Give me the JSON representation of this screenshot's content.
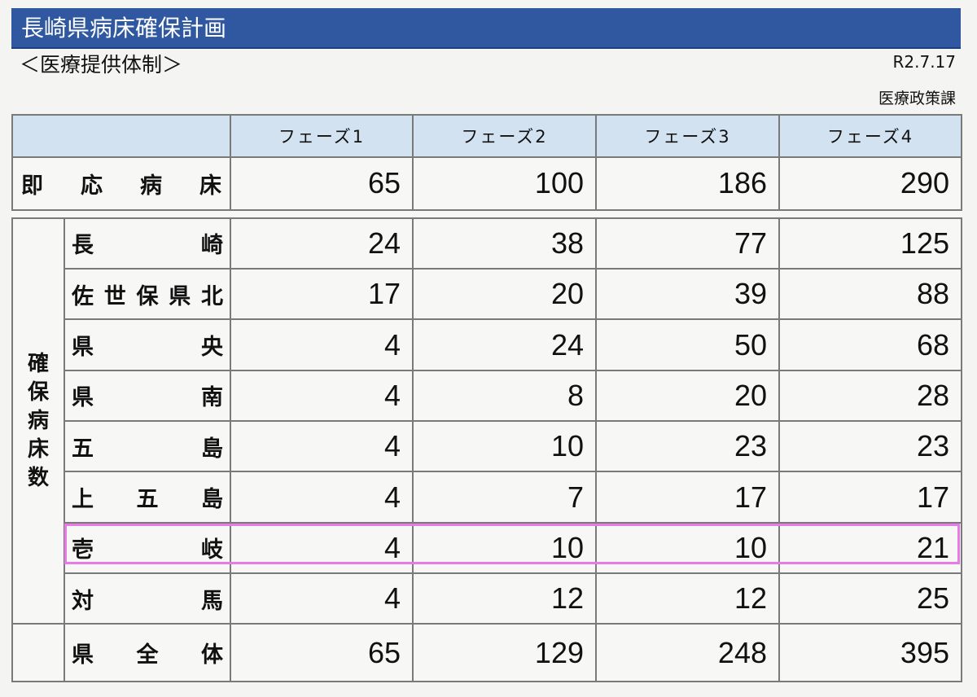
{
  "title": "長崎県病床確保計画",
  "subtitle": "＜医療提供体制＞",
  "date": "R2.7.17",
  "department": "医療政策課",
  "table": {
    "phases": [
      "フェーズ1",
      "フェーズ2",
      "フェーズ3",
      "フェーズ4"
    ],
    "immediate": {
      "label": [
        "即",
        "応",
        "病",
        "床"
      ],
      "values": [
        "65",
        "100",
        "186",
        "290"
      ]
    },
    "secured_label": [
      "確",
      "保",
      "病",
      "床",
      "数"
    ],
    "regions": [
      {
        "label": [
          "長",
          "崎"
        ],
        "values": [
          "24",
          "38",
          "77",
          "125"
        ]
      },
      {
        "label": [
          "佐",
          "世",
          "保",
          "県",
          "北"
        ],
        "values": [
          "17",
          "20",
          "39",
          "88"
        ]
      },
      {
        "label": [
          "県",
          "央"
        ],
        "values": [
          "4",
          "24",
          "50",
          "68"
        ]
      },
      {
        "label": [
          "県",
          "南"
        ],
        "values": [
          "4",
          "8",
          "20",
          "28"
        ]
      },
      {
        "label": [
          "五",
          "島"
        ],
        "values": [
          "4",
          "10",
          "23",
          "23"
        ]
      },
      {
        "label": [
          "上",
          "五",
          "島"
        ],
        "values": [
          "4",
          "7",
          "17",
          "17"
        ]
      },
      {
        "label": [
          "壱",
          "岐"
        ],
        "values": [
          "4",
          "10",
          "10",
          "21"
        ]
      },
      {
        "label": [
          "対",
          "馬"
        ],
        "values": [
          "4",
          "12",
          "12",
          "25"
        ]
      }
    ],
    "total": {
      "label": [
        "県",
        "全",
        "体"
      ],
      "values": [
        "65",
        "129",
        "248",
        "395"
      ]
    }
  },
  "highlight_color": "#e87ae8",
  "header_color": "#2f58a0"
}
